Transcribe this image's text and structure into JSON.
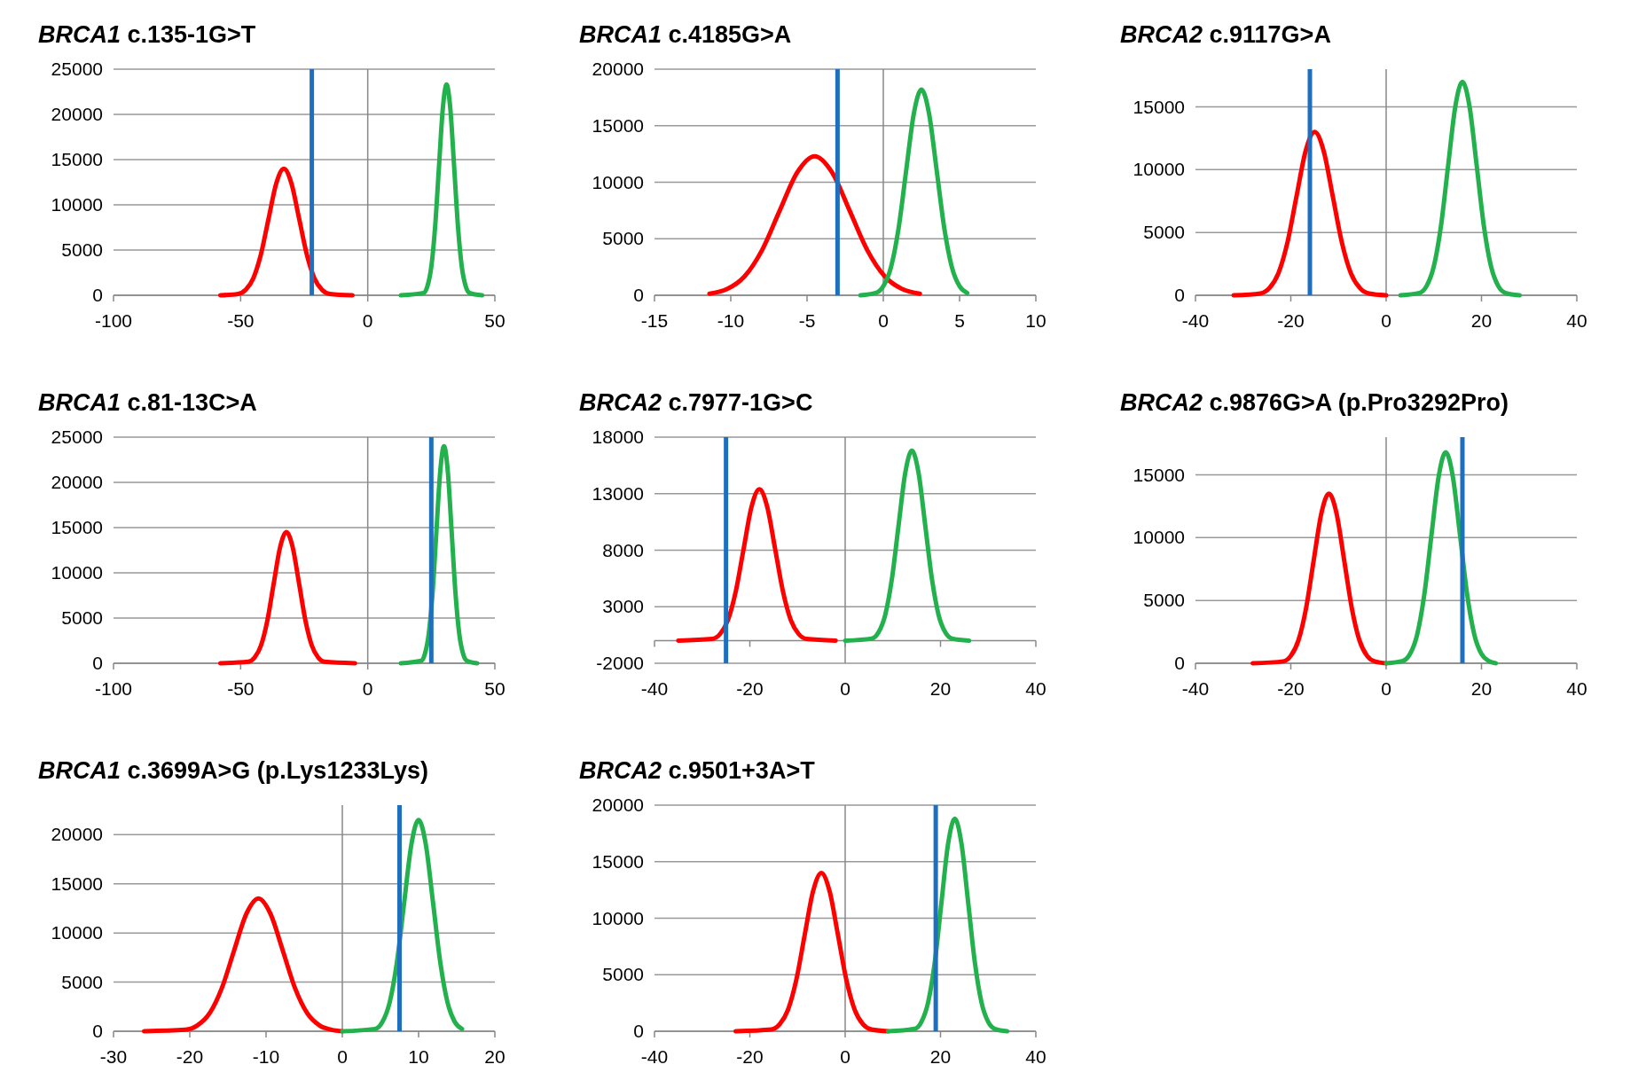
{
  "chart_data": [
    {
      "type": "line",
      "title": "BRCA1 c.135-1G>T",
      "xlim": [
        -100,
        50
      ],
      "xticks": [
        -100,
        -50,
        0,
        50
      ],
      "ylim": [
        0,
        25000
      ],
      "yticks": [
        0,
        5000,
        10000,
        15000,
        20000,
        25000
      ],
      "grid": "y",
      "series": [
        {
          "color": "#ff0000",
          "x": [
            -58,
            -51,
            -48,
            -45,
            -42,
            -39,
            -36,
            -33,
            -30,
            -27,
            -24,
            -21,
            -18,
            -15,
            -6
          ],
          "values": [
            0,
            155,
            615,
            1894,
            4546,
            8491,
            12355,
            14000,
            12355,
            8491,
            4546,
            1894,
            615,
            155,
            0
          ]
        },
        {
          "color": "#22b14c",
          "x": [
            13,
            22,
            23.5,
            25,
            26.5,
            28,
            29.5,
            31,
            32.5,
            34,
            35.5,
            37,
            38.5,
            40,
            45
          ],
          "values": [
            0,
            259,
            1023,
            3152,
            7565,
            14131,
            20562,
            23300,
            20562,
            14131,
            7565,
            3152,
            1023,
            259,
            0
          ]
        }
      ],
      "ref_lines": [
        {
          "axis": "x",
          "value": -22,
          "color": "#1f6fbf"
        }
      ]
    },
    {
      "type": "line",
      "title": "BRCA1 c.4185G>A",
      "xlim": [
        -15,
        10
      ],
      "xticks": [
        -15,
        -10,
        -5,
        0,
        5,
        10
      ],
      "ylim": [
        0,
        20000
      ],
      "yticks": [
        0,
        5000,
        10000,
        15000,
        20000
      ],
      "grid": "y",
      "series": [
        {
          "color": "#ff0000",
          "x": [
            -11.4,
            -10.25,
            -9.1,
            -7.95,
            -6.8,
            -5.65,
            -4.5,
            -3.35,
            -2.2,
            -1.05,
            0.1,
            1.25,
            2.4
          ],
          "values": [
            137,
            540,
            1664,
            3994,
            7460,
            10855,
            12300,
            10855,
            7460,
            3994,
            1664,
            540,
            137
          ]
        },
        {
          "color": "#22b14c",
          "x": [
            -1.5,
            -0.5,
            0,
            0.5,
            1,
            1.5,
            2,
            2.5,
            3,
            3.5,
            4,
            4.5,
            5,
            5.5
          ],
          "values": [
            0,
            202,
            799,
            2462,
            5910,
            11038,
            16062,
            18200,
            16062,
            11038,
            5910,
            2462,
            799,
            202
          ]
        }
      ],
      "ref_lines": [
        {
          "axis": "x",
          "value": -3,
          "color": "#1f6fbf"
        }
      ]
    },
    {
      "type": "line",
      "title": "BRCA2 c.9117G>A",
      "xlim": [
        -40,
        40
      ],
      "xticks": [
        -40,
        -20,
        0,
        20,
        40
      ],
      "ylim": [
        0,
        18000
      ],
      "yticks": [
        0,
        5000,
        10000,
        15000
      ],
      "grid": "y",
      "series": [
        {
          "color": "#ff0000",
          "x": [
            -32,
            -26.4,
            -24.5,
            -22.6,
            -20.7,
            -18.8,
            -16.9,
            -15,
            -13.1,
            -11.2,
            -9.3,
            -7.4,
            -5.5,
            -3.6,
            0
          ],
          "values": [
            0,
            144,
            571,
            1759,
            4221,
            7885,
            11473,
            13000,
            11473,
            7885,
            4221,
            1759,
            571,
            144,
            0
          ]
        },
        {
          "color": "#22b14c",
          "x": [
            3,
            7,
            8.5,
            10,
            11.5,
            13,
            14.5,
            16,
            17.5,
            19,
            20.5,
            22,
            23.5,
            25,
            28
          ],
          "values": [
            0,
            189,
            746,
            2300,
            5520,
            10311,
            15003,
            17000,
            15003,
            10311,
            5520,
            2300,
            746,
            189,
            0
          ]
        }
      ],
      "ref_lines": [
        {
          "axis": "x",
          "value": -16,
          "color": "#1f6fbf"
        }
      ]
    },
    {
      "type": "line",
      "title": "BRCA1 c.81-13C>A",
      "xlim": [
        -100,
        50
      ],
      "xticks": [
        -100,
        -50,
        0,
        50
      ],
      "ylim": [
        0,
        25000
      ],
      "yticks": [
        0,
        5000,
        10000,
        15000,
        20000,
        25000
      ],
      "grid": "y",
      "series": [
        {
          "color": "#ff0000",
          "x": [
            -58,
            -47,
            -44.5,
            -42,
            -39.5,
            -37,
            -34.5,
            -32,
            -29.5,
            -27,
            -24.5,
            -22,
            -19.5,
            -17,
            -5
          ],
          "values": [
            0,
            161,
            637,
            1962,
            4708,
            8794,
            12796,
            14500,
            12796,
            8794,
            4708,
            1962,
            637,
            161,
            0
          ]
        },
        {
          "color": "#22b14c",
          "x": [
            13,
            21,
            22.5,
            24,
            25.5,
            27,
            28.5,
            30,
            31.5,
            33,
            34.5,
            36,
            37.5,
            39,
            43
          ],
          "values": [
            0,
            266,
            1054,
            3247,
            7793,
            14556,
            21180,
            24000,
            21180,
            14556,
            7793,
            3247,
            1054,
            266,
            0
          ]
        }
      ],
      "ref_lines": [
        {
          "axis": "x",
          "value": 25,
          "color": "#1f6fbf"
        }
      ]
    },
    {
      "type": "line",
      "title": "BRCA2 c.7977-1G>C",
      "xlim": [
        -40,
        40
      ],
      "xticks": [
        -40,
        -20,
        0,
        20,
        40
      ],
      "ylim": [
        -2000,
        18000
      ],
      "yticks": [
        -2000,
        3000,
        8000,
        13000,
        18000
      ],
      "grid": "y",
      "series": [
        {
          "color": "#ff0000",
          "x": [
            -35,
            -27.9,
            -26.25,
            -24.6,
            -22.95,
            -21.3,
            -19.65,
            -18,
            -16.35,
            -14.7,
            -13.05,
            -11.4,
            -9.75,
            -8.1,
            -2
          ],
          "values": [
            0,
            149,
            588,
            1813,
            4351,
            8127,
            11826,
            13400,
            11826,
            8127,
            4351,
            1813,
            588,
            149,
            0
          ]
        },
        {
          "color": "#22b14c",
          "x": [
            0,
            5.6,
            7,
            8.4,
            9.8,
            11.2,
            12.6,
            14,
            15.4,
            16.8,
            18.2,
            19.6,
            21,
            22.4,
            26
          ],
          "values": [
            0,
            186,
            738,
            2273,
            5455,
            10189,
            14826,
            16800,
            14826,
            10189,
            5455,
            2273,
            738,
            186,
            0
          ]
        }
      ],
      "ref_lines": [
        {
          "axis": "x",
          "value": -25,
          "color": "#1f6fbf"
        }
      ]
    },
    {
      "type": "line",
      "title": "BRCA2 c.9876G>A (p.Pro3292Pro)",
      "xlim": [
        -40,
        40
      ],
      "xticks": [
        -40,
        -20,
        0,
        20,
        40
      ],
      "ylim": [
        0,
        18000
      ],
      "yticks": [
        0,
        5000,
        10000,
        15000
      ],
      "grid": "y",
      "series": [
        {
          "color": "#ff0000",
          "x": [
            -28,
            -21.6,
            -20,
            -18.4,
            -16.8,
            -15.2,
            -13.6,
            -12,
            -10.4,
            -8.8,
            -7.2,
            -5.6,
            -4,
            -2.4,
            0
          ],
          "values": [
            0,
            150,
            593,
            1827,
            4383,
            8188,
            11914,
            13500,
            11914,
            8188,
            4383,
            1827,
            593,
            150,
            0
          ]
        },
        {
          "color": "#22b14c",
          "x": [
            0,
            3.5,
            5,
            6.5,
            8,
            9.5,
            11,
            12.5,
            14,
            15.5,
            17,
            18.5,
            20,
            21.5,
            23
          ],
          "values": [
            0,
            186,
            738,
            2273,
            5455,
            10189,
            14826,
            16800,
            14826,
            10189,
            5455,
            2273,
            738,
            186,
            0
          ]
        }
      ],
      "ref_lines": [
        {
          "axis": "x",
          "value": 16,
          "color": "#1f6fbf"
        }
      ]
    },
    {
      "type": "line",
      "title": "BRCA1 c.3699A>G (p.Lys1233Lys)",
      "xlim": [
        -30,
        20
      ],
      "xticks": [
        -30,
        -20,
        -10,
        0,
        10,
        20
      ],
      "ylim": [
        0,
        23000
      ],
      "yticks": [
        0,
        5000,
        10000,
        15000,
        20000
      ],
      "grid": "y",
      "series": [
        {
          "color": "#ff0000",
          "x": [
            -26,
            -20.6,
            -19,
            -17.4,
            -15.8,
            -14.2,
            -12.6,
            -11,
            -9.4,
            -7.8,
            -6.2,
            -4.6,
            -3,
            -1.4,
            0
          ],
          "values": [
            0,
            150,
            593,
            1827,
            4383,
            8188,
            11914,
            13500,
            11914,
            8188,
            4383,
            1827,
            593,
            150,
            0
          ]
        },
        {
          "color": "#22b14c",
          "x": [
            0,
            4.3,
            5.25,
            6.2,
            7.15,
            8.1,
            9.05,
            10,
            10.95,
            11.9,
            12.85,
            13.8,
            14.75,
            15.7
          ],
          "values": [
            0,
            239,
            944,
            2909,
            6981,
            13040,
            18974,
            21500,
            18974,
            13040,
            6981,
            2909,
            944,
            239
          ]
        }
      ],
      "ref_lines": [
        {
          "axis": "x",
          "value": 7.5,
          "color": "#1f6fbf"
        }
      ]
    },
    {
      "type": "line",
      "title": "BRCA2 c.9501+3A>T",
      "xlim": [
        -40,
        40
      ],
      "xticks": [
        -40,
        -20,
        0,
        20,
        40
      ],
      "ylim": [
        0,
        20000
      ],
      "yticks": [
        0,
        5000,
        10000,
        15000,
        20000
      ],
      "grid": "y",
      "series": [
        {
          "color": "#ff0000",
          "x": [
            -23,
            -15.5,
            -13.75,
            -12,
            -10.25,
            -8.5,
            -6.75,
            -5,
            -3.25,
            -1.5,
            0.25,
            2,
            3.75,
            5.5,
            9
          ],
          "values": [
            0,
            155,
            615,
            1894,
            4546,
            8491,
            12355,
            14000,
            12355,
            8491,
            4546,
            1894,
            615,
            155,
            0
          ]
        },
        {
          "color": "#22b14c",
          "x": [
            9,
            14.6,
            16,
            17.4,
            18.8,
            20.2,
            21.6,
            23,
            24.4,
            25.8,
            27.2,
            28.6,
            30,
            31.4,
            34
          ],
          "values": [
            0,
            209,
            825,
            2544,
            6104,
            11402,
            16591,
            18800,
            16591,
            11402,
            6104,
            2544,
            825,
            209,
            0
          ]
        }
      ],
      "ref_lines": [
        {
          "axis": "x",
          "value": 19,
          "color": "#1f6fbf"
        }
      ]
    }
  ]
}
